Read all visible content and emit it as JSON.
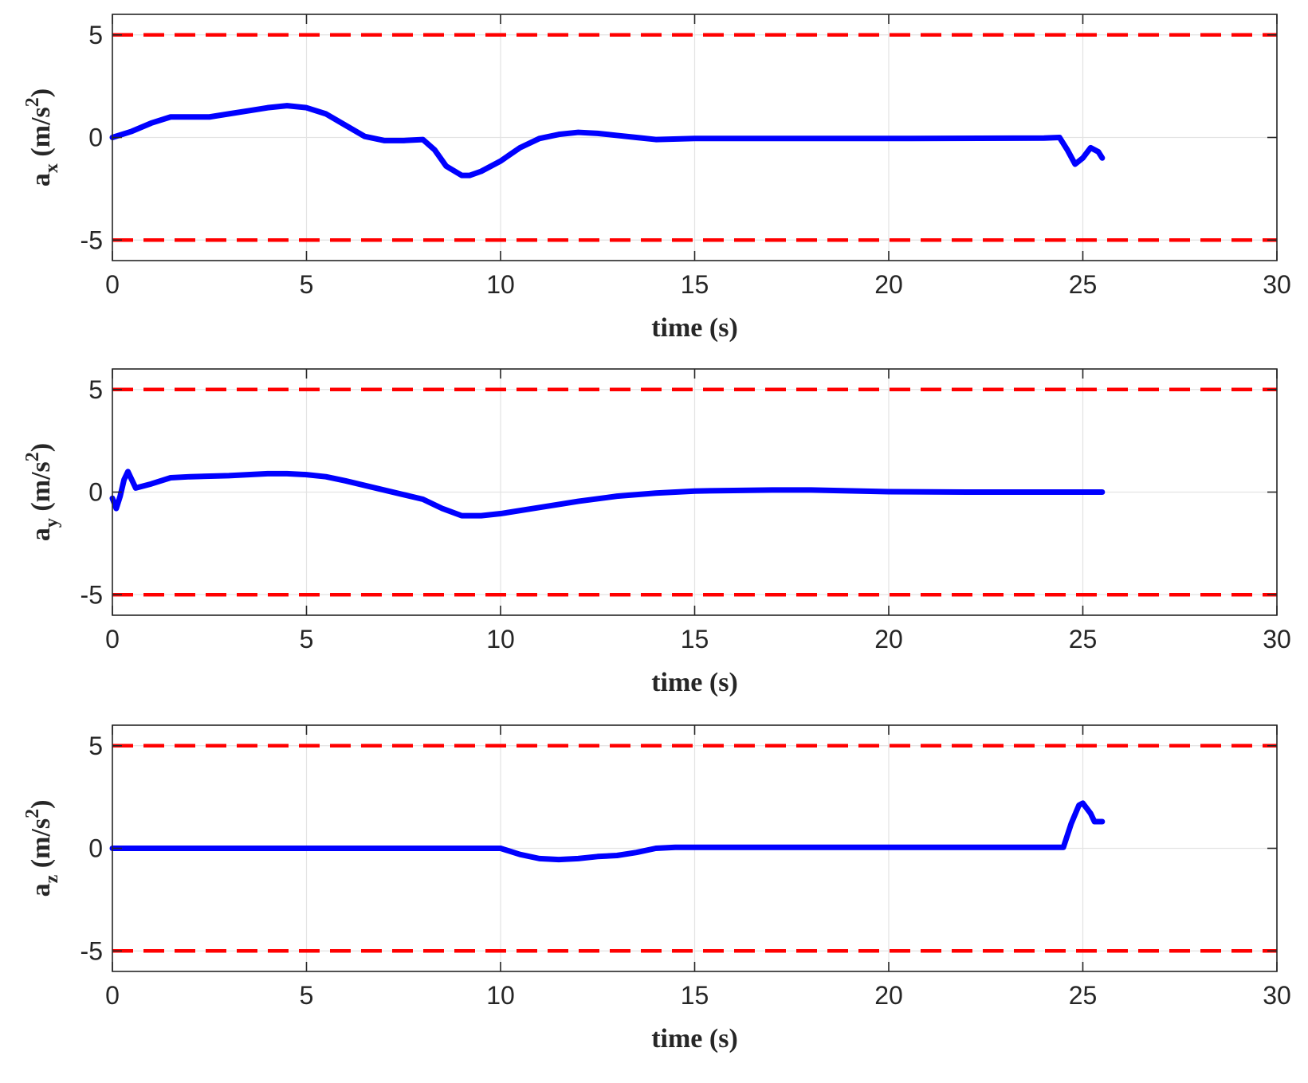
{
  "chart_data": [
    {
      "type": "line",
      "xlabel": "time (s)",
      "ylabel": {
        "base": "a",
        "sub": "x",
        "unit_open": " (m/s",
        "unit_sup": "2",
        "unit_close": ")"
      },
      "xlim": [
        0,
        30
      ],
      "ylim": [
        -6,
        6
      ],
      "xticks": [
        "0",
        "5",
        "10",
        "15",
        "20",
        "25",
        "30"
      ],
      "yticks": [
        "5",
        "0",
        "-5"
      ],
      "ytick_values": [
        5,
        0,
        -5
      ],
      "grid": true,
      "limits": {
        "upper": 5,
        "lower": -5,
        "color": "#ff0000",
        "style": "dashed"
      },
      "series": [
        {
          "color": "#0000ff",
          "x": [
            0,
            0.5,
            1.0,
            1.5,
            2.0,
            2.5,
            3.0,
            3.5,
            4.0,
            4.5,
            5.0,
            5.5,
            6.0,
            6.5,
            7.0,
            7.5,
            8.0,
            8.3,
            8.6,
            9.0,
            9.2,
            9.5,
            10.0,
            10.5,
            11.0,
            11.5,
            12.0,
            12.5,
            13.0,
            13.5,
            14.0,
            15.0,
            20.0,
            24.0,
            24.4,
            24.6,
            24.8,
            25.0,
            25.2,
            25.4,
            25.5
          ],
          "y": [
            0,
            0.3,
            0.7,
            1.0,
            1.0,
            1.0,
            1.15,
            1.3,
            1.45,
            1.55,
            1.45,
            1.15,
            0.6,
            0.05,
            -0.15,
            -0.15,
            -0.1,
            -0.6,
            -1.4,
            -1.85,
            -1.85,
            -1.65,
            -1.15,
            -0.5,
            -0.05,
            0.15,
            0.25,
            0.2,
            0.1,
            0.0,
            -0.1,
            -0.05,
            -0.05,
            -0.03,
            0.0,
            -0.6,
            -1.3,
            -1.0,
            -0.5,
            -0.7,
            -1.0
          ]
        }
      ]
    },
    {
      "type": "line",
      "xlabel": "time (s)",
      "ylabel": {
        "base": "a",
        "sub": "y",
        "unit_open": " (m/s",
        "unit_sup": "2",
        "unit_close": ")"
      },
      "xlim": [
        0,
        30
      ],
      "ylim": [
        -6,
        6
      ],
      "xticks": [
        "0",
        "5",
        "10",
        "15",
        "20",
        "25",
        "30"
      ],
      "yticks": [
        "5",
        "0",
        "-5"
      ],
      "ytick_values": [
        5,
        0,
        -5
      ],
      "grid": true,
      "limits": {
        "upper": 5,
        "lower": -5,
        "color": "#ff0000",
        "style": "dashed"
      },
      "series": [
        {
          "color": "#0000ff",
          "x": [
            0,
            0.1,
            0.2,
            0.3,
            0.4,
            0.6,
            1.0,
            1.5,
            2.0,
            3.0,
            4.0,
            4.5,
            5.0,
            5.5,
            6.0,
            7.0,
            8.0,
            8.5,
            9.0,
            9.5,
            10.0,
            11.0,
            12.0,
            13.0,
            14.0,
            15.0,
            16.0,
            17.0,
            18.0,
            20.0,
            22.0,
            25.5
          ],
          "y": [
            -0.3,
            -0.8,
            -0.2,
            0.6,
            1.0,
            0.2,
            0.4,
            0.7,
            0.75,
            0.8,
            0.9,
            0.9,
            0.85,
            0.75,
            0.55,
            0.1,
            -0.35,
            -0.8,
            -1.15,
            -1.15,
            -1.05,
            -0.75,
            -0.45,
            -0.2,
            -0.05,
            0.05,
            0.08,
            0.1,
            0.1,
            0.02,
            0.0,
            0.0
          ]
        }
      ]
    },
    {
      "type": "line",
      "xlabel": "time (s)",
      "ylabel": {
        "base": "a",
        "sub": "z",
        "unit_open": " (m/s",
        "unit_sup": "2",
        "unit_close": ")"
      },
      "xlim": [
        0,
        30
      ],
      "ylim": [
        -6,
        6
      ],
      "xticks": [
        "0",
        "5",
        "10",
        "15",
        "20",
        "25",
        "30"
      ],
      "yticks": [
        "5",
        "0",
        "-5"
      ],
      "ytick_values": [
        5,
        0,
        -5
      ],
      "grid": true,
      "limits": {
        "upper": 5,
        "lower": -5,
        "color": "#ff0000",
        "style": "dashed"
      },
      "series": [
        {
          "color": "#0000ff",
          "x": [
            0,
            5,
            10.0,
            10.5,
            11.0,
            11.5,
            12.0,
            12.5,
            13.0,
            13.5,
            14.0,
            14.5,
            15.0,
            20.0,
            24.5,
            24.7,
            24.9,
            25.0,
            25.2,
            25.3,
            25.5
          ],
          "y": [
            0,
            0,
            0,
            -0.3,
            -0.5,
            -0.55,
            -0.5,
            -0.4,
            -0.35,
            -0.2,
            0.0,
            0.05,
            0.05,
            0.05,
            0.05,
            1.2,
            2.1,
            2.2,
            1.7,
            1.3,
            1.3
          ]
        }
      ]
    }
  ]
}
